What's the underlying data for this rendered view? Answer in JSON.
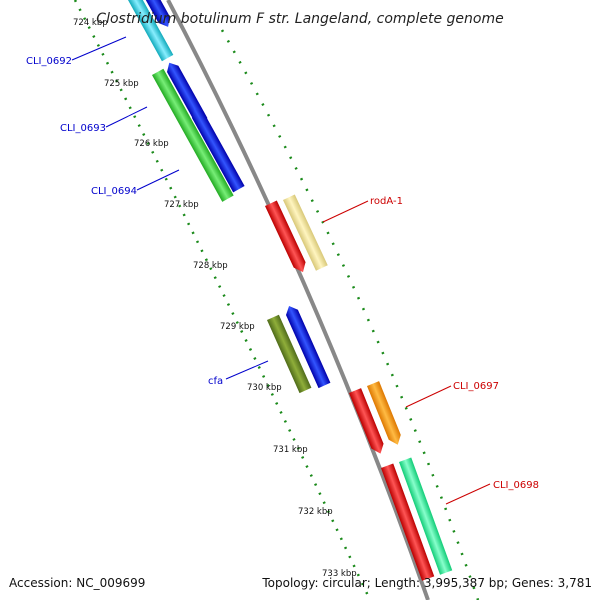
{
  "title": "Clostridium botulinum F str. Langeland, complete genome",
  "footer": {
    "accession": "Accession: NC_009699",
    "topology": "Topology: circular; Length: 3,995,387 bp; Genes: 3,781"
  },
  "scale": {
    "ticks": [
      {
        "label": "724 kbp"
      },
      {
        "label": "725 kbp"
      },
      {
        "label": "726 kbp"
      },
      {
        "label": "727 kbp"
      },
      {
        "label": "728 kbp"
      },
      {
        "label": "729 kbp"
      },
      {
        "label": "730 kbp"
      },
      {
        "label": "731 kbp"
      },
      {
        "label": "732 kbp"
      },
      {
        "label": "733 kbp"
      }
    ]
  },
  "genes": [
    {
      "label": "CLI_0692",
      "color": "#0000cc"
    },
    {
      "label": "CLI_0693",
      "color": "#0000cc"
    },
    {
      "label": "CLI_0694",
      "color": "#0000cc"
    },
    {
      "label": "cfa",
      "color": "#0000cc"
    },
    {
      "label": "rodA-1",
      "color": "#cc0000"
    },
    {
      "label": "CLI_0697",
      "color": "#cc0000"
    },
    {
      "label": "CLI_0698",
      "color": "#cc0000"
    }
  ],
  "feature_colors": {
    "backbone": "#888888",
    "dots": "#1a8a1a",
    "cyan": "#22c8d8",
    "blue": "#0000ee",
    "green": "#33cc33",
    "olive": "#6b8e23",
    "red": "#ee0000",
    "yellow": "#f0e68c",
    "orange": "#ff9900",
    "mint": "#22ee99"
  }
}
